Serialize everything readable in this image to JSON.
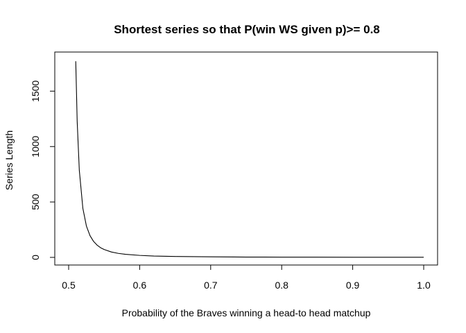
{
  "chart_data": {
    "type": "line",
    "title": "Shortest series so that P(win WS given p)>= 0.8",
    "xlabel": "Probability of the Braves winning a head-to head matchup",
    "ylabel": "Series Length",
    "xlim": [
      0.5,
      1.0
    ],
    "ylim": [
      0,
      1770
    ],
    "x_ticks": [
      "0.5",
      "0.6",
      "0.7",
      "0.8",
      "0.9",
      "1.0"
    ],
    "y_ticks": [
      "0",
      "500",
      "1000",
      "1500"
    ],
    "grid": false,
    "series": [
      {
        "color": "#000000",
        "x": [
          0.51,
          0.512,
          0.515,
          0.52,
          0.525,
          0.53,
          0.535,
          0.54,
          0.545,
          0.55,
          0.56,
          0.57,
          0.58,
          0.6,
          0.62,
          0.65,
          0.7,
          0.75,
          0.8,
          0.85,
          0.9,
          0.95,
          1.0
        ],
        "y": [
          1770,
          1229,
          787,
          443,
          283,
          197,
          145,
          111,
          87,
          71,
          49,
          36,
          28,
          18,
          12,
          8,
          5,
          3,
          2,
          2,
          1,
          1,
          1
        ]
      }
    ]
  }
}
